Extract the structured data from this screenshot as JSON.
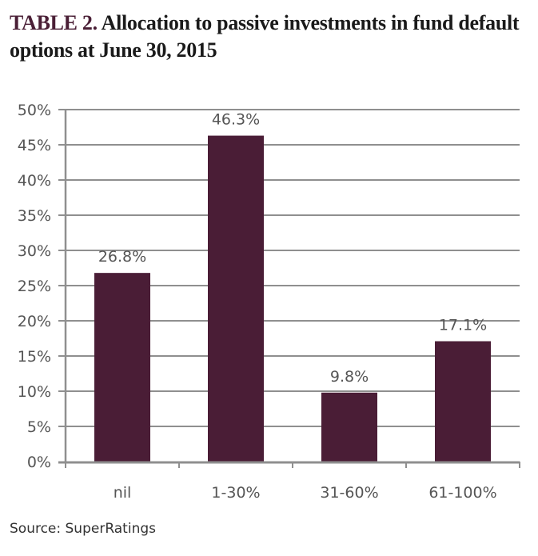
{
  "title": {
    "lead": "TABLE 2.",
    "rest": " Allocation to passive investments in fund default options at June 30, 2015"
  },
  "source": "Source: SuperRatings",
  "colors": {
    "bar": "#4a1d36",
    "grid": "#8f8f8f",
    "axis": "#8f8f8f",
    "text": "#555555"
  },
  "chart_data": {
    "type": "bar",
    "title": "TABLE 2. Allocation to passive investments in fund default options at June 30, 2015",
    "categories": [
      "nil",
      "1-30%",
      "31-60%",
      "61-100%"
    ],
    "values": [
      26.8,
      46.3,
      9.8,
      17.1
    ],
    "data_labels": [
      "26.8%",
      "46.3%",
      "9.8%",
      "17.1%"
    ],
    "xlabel": "",
    "ylabel": "",
    "ylim": [
      0,
      50
    ],
    "yticks": [
      0,
      5,
      10,
      15,
      20,
      25,
      30,
      35,
      40,
      45,
      50
    ],
    "ytick_labels": [
      "0%",
      "5%",
      "10%",
      "15%",
      "20%",
      "25%",
      "30%",
      "35%",
      "40%",
      "45%",
      "50%"
    ],
    "grid": true,
    "legend": "none",
    "source": "Source: SuperRatings"
  }
}
